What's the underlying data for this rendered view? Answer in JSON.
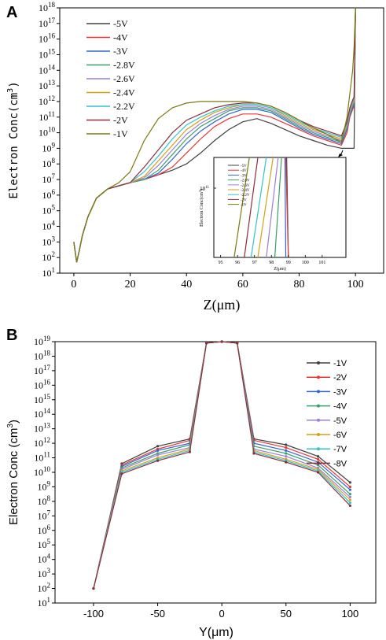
{
  "chart_data": [
    {
      "type": "line",
      "panel_label": "A",
      "xlabel": "Z(μm)",
      "ylabel": "Electron Conc(cm",
      "ylabel_sup": "3",
      "ylabel_close": ")",
      "yscale": "log",
      "xlim": [
        -5,
        110
      ],
      "ylim_exp": [
        1,
        18
      ],
      "xticks": [
        "0",
        "20",
        "40",
        "60",
        "80",
        "100"
      ],
      "ytick_base": "10",
      "yticks_exp": [
        "1",
        "2",
        "3",
        "4",
        "5",
        "6",
        "7",
        "8",
        "9",
        "10",
        "11",
        "12",
        "13",
        "14",
        "15",
        "16",
        "17",
        "18"
      ],
      "legend_position": "top-left",
      "x": [
        0,
        1,
        2,
        3,
        5,
        8,
        12,
        16,
        20,
        25,
        30,
        35,
        40,
        45,
        50,
        55,
        60,
        65,
        70,
        75,
        80,
        85,
        90,
        95,
        97,
        98,
        99,
        99.5,
        100
      ],
      "series": [
        {
          "name": "-5V",
          "color": "#404040",
          "log_values": [
            3.0,
            1.7,
            2.5,
            3.4,
            4.6,
            5.8,
            6.4,
            6.6,
            6.8,
            7.0,
            7.3,
            7.6,
            8.0,
            8.7,
            9.5,
            10.2,
            10.7,
            10.9,
            10.6,
            10.2,
            9.8,
            9.5,
            9.2,
            9.0,
            9.0,
            9.0,
            9.0,
            9.0,
            18
          ]
        },
        {
          "name": "-4V",
          "color": "#ee3333",
          "log_values": [
            3.0,
            1.7,
            2.5,
            3.4,
            4.6,
            5.8,
            6.4,
            6.6,
            6.8,
            7.0,
            7.3,
            7.8,
            8.7,
            9.6,
            10.4,
            10.9,
            11.2,
            11.2,
            11.0,
            10.6,
            10.2,
            9.8,
            9.5,
            9.2,
            10.0,
            11.0,
            11.5,
            11.7,
            18
          ]
        },
        {
          "name": "-3V",
          "color": "#3366cc",
          "log_values": [
            3.0,
            1.7,
            2.5,
            3.4,
            4.6,
            5.8,
            6.4,
            6.6,
            6.8,
            7.0,
            7.4,
            8.3,
            9.3,
            10.1,
            10.7,
            11.2,
            11.5,
            11.5,
            11.3,
            10.8,
            10.3,
            9.9,
            9.6,
            9.3,
            10.2,
            11.1,
            11.6,
            11.8,
            18
          ]
        },
        {
          "name": "-2.8V",
          "color": "#3a9e6a",
          "log_values": [
            3.0,
            1.7,
            2.5,
            3.4,
            4.6,
            5.8,
            6.4,
            6.6,
            6.8,
            7.0,
            7.6,
            8.6,
            9.6,
            10.4,
            10.9,
            11.4,
            11.6,
            11.6,
            11.4,
            10.9,
            10.4,
            10.0,
            9.7,
            9.4,
            10.3,
            11.2,
            11.7,
            11.9,
            18
          ]
        },
        {
          "name": "-2.6V",
          "color": "#9b7fd6",
          "log_values": [
            3.0,
            1.7,
            2.5,
            3.4,
            4.6,
            5.8,
            6.4,
            6.6,
            6.8,
            7.1,
            7.9,
            8.9,
            9.9,
            10.6,
            11.1,
            11.5,
            11.7,
            11.7,
            11.5,
            11.0,
            10.5,
            10.1,
            9.8,
            9.5,
            10.4,
            11.3,
            11.8,
            12.0,
            18
          ]
        },
        {
          "name": "-2.4V",
          "color": "#d4a017",
          "log_values": [
            3.0,
            1.7,
            2.5,
            3.4,
            4.6,
            5.8,
            6.4,
            6.6,
            6.8,
            7.2,
            8.2,
            9.2,
            10.2,
            10.8,
            11.3,
            11.6,
            11.8,
            11.8,
            11.6,
            11.1,
            10.6,
            10.2,
            9.9,
            9.6,
            10.5,
            11.4,
            11.9,
            12.1,
            18
          ]
        },
        {
          "name": "-2.2V",
          "color": "#33c2cc",
          "log_values": [
            3.0,
            1.7,
            2.5,
            3.4,
            4.6,
            5.8,
            6.4,
            6.6,
            6.8,
            7.5,
            8.5,
            9.6,
            10.5,
            11.0,
            11.4,
            11.7,
            11.8,
            11.8,
            11.6,
            11.2,
            10.7,
            10.3,
            10.0,
            9.7,
            10.6,
            11.5,
            12.0,
            12.2,
            18
          ]
        },
        {
          "name": "-2V",
          "color": "#8b2e3a",
          "log_values": [
            3.0,
            1.7,
            2.5,
            3.4,
            4.6,
            5.8,
            6.4,
            6.6,
            6.8,
            7.8,
            8.9,
            10.0,
            10.8,
            11.2,
            11.6,
            11.8,
            11.9,
            11.9,
            11.7,
            11.3,
            10.8,
            10.4,
            10.1,
            9.8,
            10.7,
            11.6,
            12.1,
            12.3,
            18
          ]
        },
        {
          "name": "-1V",
          "color": "#7a7a14",
          "log_values": [
            3.0,
            1.7,
            2.5,
            3.4,
            4.6,
            5.8,
            6.4,
            6.8,
            7.5,
            9.5,
            10.9,
            11.6,
            11.9,
            12.0,
            12.0,
            12.0,
            12.0,
            11.9,
            11.7,
            11.3,
            10.8,
            10.3,
            9.9,
            9.4,
            11.0,
            12.5,
            14.0,
            15.5,
            18
          ]
        }
      ],
      "inset": {
        "xlabel": "Z(μm)",
        "ylabel": "Electron Conc(cm",
        "ylabel_sup": "3",
        "ylabel_close": ")",
        "xticks": [
          "95",
          "96",
          "97",
          "98",
          "99",
          "100",
          "101"
        ],
        "ytick_base": "10",
        "ytick_exp": "11",
        "line_x_at_top": {
          "-5V": 98.9,
          "-4V": 98.85,
          "-3V": 98.8,
          "-2.8V": 98.6,
          "-2.6V": 98.4,
          "-2.4V": 98.1,
          "-2.2V": 97.7,
          "-2V": 97.2,
          "-1V": 96.7
        },
        "line_x_at_bottom": {
          "-5V": 99.0,
          "-4V": 99.0,
          "-3V": 98.85,
          "-2.8V": 98.2,
          "-2.6V": 97.7,
          "-2.4V": 97.2,
          "-2.2V": 96.8,
          "-2V": 96.4,
          "-1V": 95.8
        }
      }
    },
    {
      "type": "line",
      "panel_label": "B",
      "xlabel": "Y(μm)",
      "ylabel": "Electron Conc (cm",
      "ylabel_sup": "3",
      "ylabel_close": ")",
      "yscale": "log",
      "xlim": [
        -130,
        120
      ],
      "ylim_exp": [
        1,
        19
      ],
      "xticks": [
        "-100",
        "-50",
        "0",
        "50",
        "100"
      ],
      "ytick_base": "10",
      "yticks_exp": [
        "1",
        "2",
        "3",
        "4",
        "5",
        "6",
        "7",
        "8",
        "9",
        "10",
        "11",
        "12",
        "13",
        "14",
        "15",
        "16",
        "17",
        "18",
        "19"
      ],
      "legend_position": "top-right",
      "x": [
        -100,
        -78,
        -50,
        -25,
        -12,
        0,
        12,
        25,
        50,
        75,
        100
      ],
      "series": [
        {
          "name": "-1V",
          "color": "#404040",
          "log_values": [
            2.0,
            10.6,
            11.8,
            12.3,
            18.9,
            19.0,
            18.9,
            12.3,
            11.9,
            11.1,
            9.3
          ]
        },
        {
          "name": "-2V",
          "color": "#ee3333",
          "log_values": [
            2.0,
            10.5,
            11.6,
            12.2,
            18.9,
            19.0,
            18.9,
            12.2,
            11.7,
            10.9,
            9.0
          ]
        },
        {
          "name": "-3V",
          "color": "#3366cc",
          "log_values": [
            2.0,
            10.4,
            11.5,
            12.0,
            18.9,
            19.0,
            18.9,
            12.0,
            11.5,
            10.7,
            8.8
          ]
        },
        {
          "name": "-4V",
          "color": "#3a9e6a",
          "log_values": [
            2.0,
            10.3,
            11.3,
            11.9,
            18.9,
            19.0,
            18.9,
            11.8,
            11.3,
            10.5,
            8.5
          ]
        },
        {
          "name": "-5V",
          "color": "#9b7fd6",
          "log_values": [
            2.0,
            10.2,
            11.2,
            11.7,
            18.9,
            19.0,
            18.9,
            11.6,
            11.1,
            10.3,
            8.3
          ]
        },
        {
          "name": "-6V",
          "color": "#d4a017",
          "log_values": [
            2.0,
            10.1,
            11.0,
            11.6,
            18.9,
            19.0,
            18.9,
            11.5,
            10.9,
            10.2,
            8.1
          ]
        },
        {
          "name": "-7V",
          "color": "#33c2cc",
          "log_values": [
            2.0,
            10.0,
            10.9,
            11.5,
            18.9,
            19.0,
            18.9,
            11.4,
            10.8,
            10.1,
            7.9
          ]
        },
        {
          "name": "-8V",
          "color": "#8b2e3a",
          "log_values": [
            2.0,
            9.9,
            10.8,
            11.4,
            18.9,
            19.0,
            18.9,
            11.3,
            10.7,
            10.0,
            7.7
          ]
        }
      ]
    }
  ]
}
